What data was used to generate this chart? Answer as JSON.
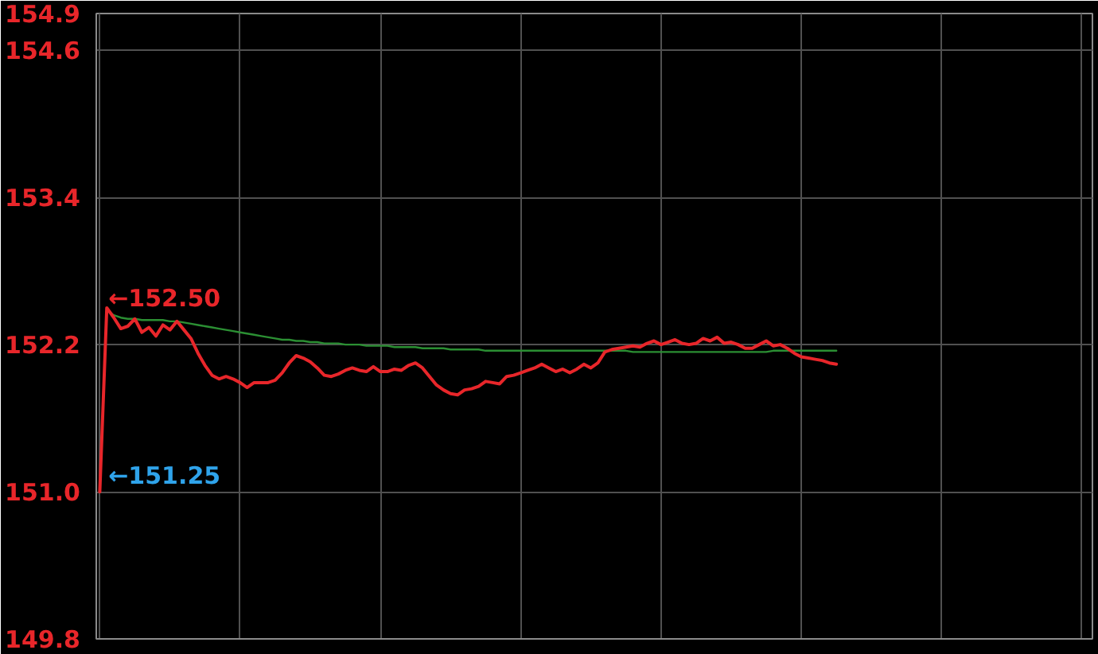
{
  "chart_data": {
    "type": "line",
    "categories": [
      null,
      null,
      null,
      null,
      null,
      null,
      null,
      null,
      null,
      null,
      null,
      null,
      null,
      null,
      null,
      null,
      null,
      null,
      null,
      null,
      null,
      null,
      null,
      null,
      null,
      null,
      null,
      null,
      null,
      null,
      null,
      null,
      null,
      null,
      null,
      null,
      null,
      null,
      null,
      null,
      null,
      null,
      null,
      null,
      null,
      null,
      null,
      null,
      null,
      null,
      null,
      null,
      null,
      null,
      null,
      null,
      null,
      null,
      null,
      null,
      null,
      null,
      null,
      null,
      null,
      null,
      null,
      null,
      null,
      null,
      null,
      null,
      null,
      null,
      null,
      null,
      null,
      null,
      null,
      null,
      null,
      null,
      null,
      null,
      null,
      null,
      null,
      null,
      null,
      null,
      null,
      null,
      null,
      null,
      null,
      null,
      null,
      null,
      null,
      null,
      null,
      null,
      null,
      null,
      null,
      null,
      null,
      null,
      null,
      null,
      null,
      null,
      null,
      null,
      null,
      null,
      null,
      null,
      null,
      null,
      null,
      null,
      null,
      null,
      null,
      null,
      null,
      null,
      null,
      null,
      null,
      null,
      null,
      null,
      null,
      null,
      null,
      null,
      null,
      null,
      null,
      null
    ],
    "series": [
      {
        "color": "#2b8f33",
        "values": [
          null,
          152.48,
          152.44,
          152.42,
          152.41,
          152.41,
          152.4,
          152.4,
          152.4,
          152.4,
          152.39,
          152.39,
          152.38,
          152.37,
          152.36,
          152.35,
          152.34,
          152.33,
          152.32,
          152.31,
          152.3,
          152.29,
          152.28,
          152.27,
          152.26,
          152.25,
          152.24,
          152.24,
          152.23,
          152.23,
          152.22,
          152.22,
          152.21,
          152.21,
          152.21,
          152.2,
          152.2,
          152.2,
          152.19,
          152.19,
          152.19,
          152.19,
          152.18,
          152.18,
          152.18,
          152.18,
          152.17,
          152.17,
          152.17,
          152.17,
          152.16,
          152.16,
          152.16,
          152.16,
          152.16,
          152.15,
          152.15,
          152.15,
          152.15,
          152.15,
          152.15,
          152.15,
          152.15,
          152.15,
          152.15,
          152.15,
          152.15,
          152.15,
          152.15,
          152.15,
          152.15,
          152.15,
          152.15,
          152.15,
          152.15,
          152.15,
          152.14,
          152.14,
          152.14,
          152.14,
          152.14,
          152.14,
          152.14,
          152.14,
          152.14,
          152.14,
          152.14,
          152.14,
          152.14,
          152.14,
          152.14,
          152.14,
          152.14,
          152.14,
          152.14,
          152.14,
          152.15,
          152.15,
          152.15,
          152.15,
          152.15,
          152.15,
          152.15,
          152.15,
          152.15,
          152.15,
          null,
          null,
          null,
          null,
          null,
          null,
          null,
          null,
          null,
          null,
          null,
          null,
          null,
          null,
          null,
          null,
          null,
          null,
          null,
          null,
          null,
          null,
          null,
          null,
          null,
          null,
          null,
          null,
          null,
          null,
          null,
          null,
          null,
          null,
          null,
          null
        ]
      },
      {
        "color": "#e8262a",
        "values": [
          151.0,
          152.5,
          152.42,
          152.33,
          152.35,
          152.41,
          152.3,
          152.34,
          152.27,
          152.36,
          152.32,
          152.39,
          152.32,
          152.25,
          152.13,
          152.03,
          151.95,
          151.92,
          151.94,
          151.92,
          151.89,
          151.85,
          151.89,
          151.89,
          151.89,
          151.91,
          151.97,
          152.05,
          152.11,
          152.09,
          152.06,
          152.01,
          151.95,
          151.94,
          151.96,
          151.99,
          152.01,
          151.99,
          151.98,
          152.02,
          151.98,
          151.98,
          152.0,
          151.99,
          152.03,
          152.05,
          152.01,
          151.94,
          151.87,
          151.83,
          151.8,
          151.79,
          151.83,
          151.84,
          151.86,
          151.9,
          151.89,
          151.88,
          151.94,
          151.95,
          151.97,
          151.99,
          152.01,
          152.04,
          152.01,
          151.98,
          152.0,
          151.97,
          152.0,
          152.04,
          152.01,
          152.05,
          152.14,
          152.16,
          152.17,
          152.18,
          152.19,
          152.18,
          152.21,
          152.23,
          152.2,
          152.22,
          152.24,
          152.21,
          152.2,
          152.21,
          152.25,
          152.23,
          152.26,
          152.21,
          152.22,
          152.2,
          152.17,
          152.17,
          152.2,
          152.23,
          152.19,
          152.2,
          152.17,
          152.13,
          152.1,
          152.09,
          152.08,
          152.07,
          152.05,
          152.04,
          null,
          null,
          null,
          null,
          null,
          null,
          null,
          null,
          null,
          null,
          null,
          null,
          null,
          null,
          null,
          null,
          null,
          null,
          null,
          null,
          null,
          null,
          null,
          null,
          null,
          null,
          null,
          null,
          null,
          null,
          null,
          null,
          null,
          null,
          null,
          null
        ]
      }
    ],
    "ylim": [
      149.8,
      154.9
    ],
    "yticks": [
      154.9,
      154.6,
      153.4,
      152.2,
      {
        "value": 151.0,
        "label": "151.0"
      },
      149.8
    ],
    "annotations": [
      "←152.50",
      "←151.25"
    ],
    "grid": true
  }
}
